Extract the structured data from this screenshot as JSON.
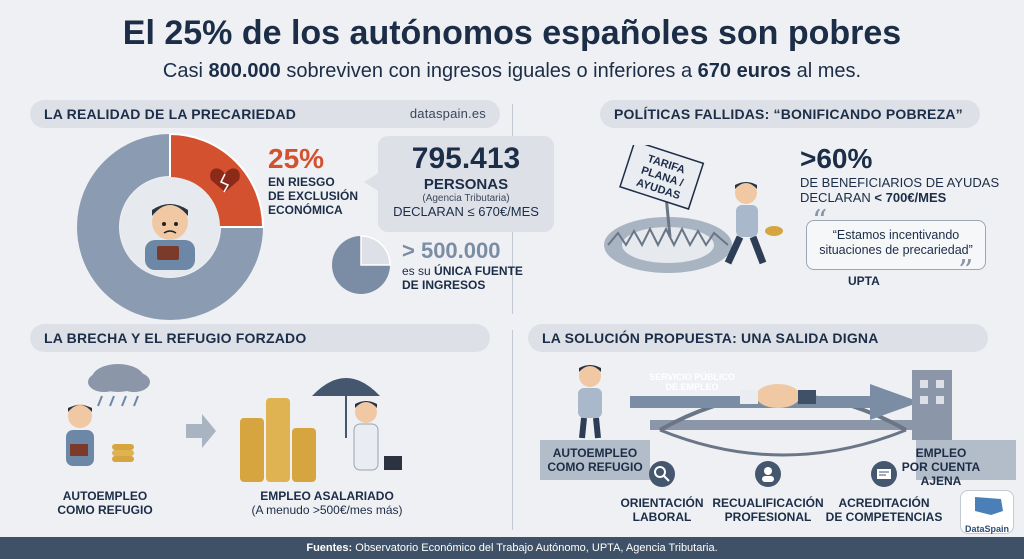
{
  "header": {
    "title": "El 25% de los autónomos españoles son pobres",
    "subtitle_pre": "Casi ",
    "subtitle_num": "800.000",
    "subtitle_mid": " sobreviven con ingresos iguales o inferiores a ",
    "subtitle_amt": "670 euros",
    "subtitle_post": " al mes."
  },
  "s1": {
    "heading": "LA REALIDAD DE LA PRECARIEDAD",
    "source": "dataspain.es",
    "pct": "25%",
    "pct_text1": "EN RIESGO",
    "pct_text2": "DE EXCLUSIÓN",
    "pct_text3": "ECONÓMICA",
    "count": "795.413",
    "count_label": "PERSONAS",
    "count_source": "(Agencia Tributaria)",
    "count_declare": "DECLARAN ≤ 670€/MES",
    "sub_count": "> 500.000",
    "sub_text1": "es su",
    "sub_text2": "ÚNICA FUENTE",
    "sub_text3": "DE INGRESOS",
    "donut_share": 0.25,
    "pie_share": 0.25
  },
  "s2": {
    "heading": "POLÍTICAS FALLIDAS: “BONIFICANDO POBREZA”",
    "sign1": "TARIFA",
    "sign2": "PLANA /",
    "sign3": "AYUDAS",
    "pct": ">60%",
    "pct_text1": "DE BENEFICIARIOS DE AYUDAS",
    "pct_text2": "DECLARAN",
    "pct_text3": "< 700€/MES",
    "quote": "“Estamos incentivando situaciones de precariedad”",
    "quote_source": "UPTA"
  },
  "s3": {
    "heading": "LA BRECHA Y EL REFUGIO FORZADO",
    "left1": "AUTOEMPLEO",
    "left2": "COMO REFUGIO",
    "right1": "EMPLEO ASALARIADO",
    "right2": "(A menudo >500€/mes más)"
  },
  "s4": {
    "heading": "LA SOLUCIÓN PROPUESTA: UNA SALIDA DIGNA",
    "arrow1": "SERVICIO PÚBLICO",
    "arrow2": "DE EMPLEO",
    "left1": "AUTOEMPLEO",
    "left2": "COMO REFUGIO",
    "right1": "EMPLEO",
    "right2": "POR CUENTA",
    "right3": "AJENA",
    "item1a": "ORIENTACIÓN",
    "item1b": "LABORAL",
    "item2a": "RECUALIFICACIÓN",
    "item2b": "PROFESIONAL",
    "item3a": "ACREDITACIÓN",
    "item3b": "DE COMPETENCIAS",
    "logo": "DataSpain"
  },
  "footer": {
    "label": "Fuentes:",
    "text": " Observatorio Económico del Trabajo Autónomo, UPTA, Agencia Tributaria."
  },
  "colors": {
    "accent": "#d4512f",
    "navy": "#1c2d47",
    "slate": "#7b8da5",
    "light": "#dde1e7"
  }
}
